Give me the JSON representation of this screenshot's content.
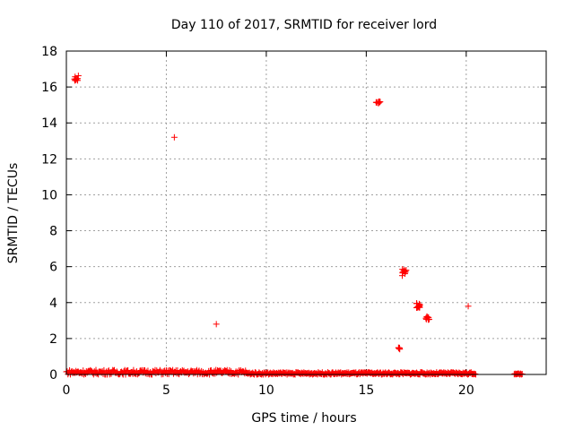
{
  "chart_data": {
    "type": "scatter",
    "title": "Day 110 of 2017, SRMTID for receiver lord",
    "xlabel": "GPS time / hours",
    "ylabel": "SRMTID / TECUs",
    "xlim": [
      0,
      24
    ],
    "ylim": [
      0,
      18
    ],
    "xticks": [
      0,
      5,
      10,
      15,
      20
    ],
    "xtick_labels": [
      "0",
      "5",
      "10",
      "15",
      "20"
    ],
    "yticks": [
      0,
      2,
      4,
      6,
      8,
      10,
      12,
      14,
      16,
      18
    ],
    "ytick_labels": [
      "0",
      "2",
      "4",
      "6",
      "8",
      "10",
      "12",
      "14",
      "16",
      "18"
    ],
    "grid": true,
    "marker": "+",
    "color": "#ff0000",
    "baseline_segments": [
      {
        "x_start": 0.0,
        "x_end": 9.0,
        "y_low": 0.0,
        "y_high": 0.25
      },
      {
        "x_start": 9.0,
        "x_end": 20.5,
        "y_low": 0.0,
        "y_high": 0.12
      },
      {
        "x_start": 22.4,
        "x_end": 22.8,
        "y_low": 0.0,
        "y_high": 0.05
      }
    ],
    "clusters": [
      {
        "x": 0.5,
        "y": 16.5,
        "spread_x": 0.1,
        "spread_y": 0.15,
        "count": 10
      },
      {
        "x": 15.6,
        "y": 15.15,
        "spread_x": 0.12,
        "spread_y": 0.06,
        "count": 10
      },
      {
        "x": 16.9,
        "y": 5.75,
        "spread_x": 0.1,
        "spread_y": 0.15,
        "count": 10
      },
      {
        "x": 17.6,
        "y": 3.85,
        "spread_x": 0.1,
        "spread_y": 0.15,
        "count": 12
      },
      {
        "x": 18.1,
        "y": 3.15,
        "spread_x": 0.12,
        "spread_y": 0.1,
        "count": 10
      },
      {
        "x": 16.65,
        "y": 1.45,
        "spread_x": 0.06,
        "spread_y": 0.05,
        "count": 6
      }
    ],
    "points": [
      {
        "x": 5.4,
        "y": 13.2
      },
      {
        "x": 7.5,
        "y": 2.8
      },
      {
        "x": 16.8,
        "y": 5.5
      },
      {
        "x": 20.1,
        "y": 3.8
      }
    ]
  }
}
